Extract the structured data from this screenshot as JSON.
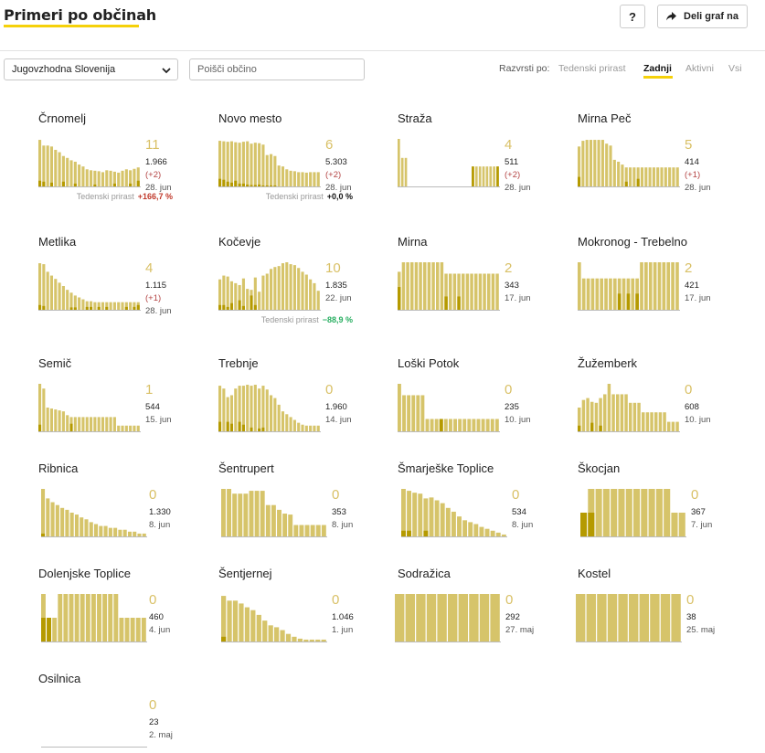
{
  "header": {
    "title": "Primeri po občinah",
    "help_label": "?",
    "share_label": "Deli graf na"
  },
  "filters": {
    "region_value": "Jugovzhodna Slovenija",
    "search_placeholder": "Poišči občino"
  },
  "sort": {
    "label": "Razvrsti po:",
    "options": [
      "Tedenski prirast",
      "Zadnji",
      "Aktivni",
      "Vsi"
    ],
    "active": "Zadnji"
  },
  "colors": {
    "bar": "#d6c46a",
    "bar_dark": "#b59a00",
    "big_number": "#d9c066",
    "delta": "#b44444",
    "growth_up": "#c0392b",
    "growth_down": "#27ae60",
    "accent": "#f5d10a"
  },
  "municipalities": [
    {
      "name": "Črnomelj",
      "latest": "11",
      "total": "1.966",
      "delta": "(+2)",
      "date": "28. jun",
      "growth_label": "Tedenski prirast",
      "growth_value": "+166,7 %",
      "growth_dir": "up",
      "bars": [
        0.98,
        0.86,
        0.86,
        0.84,
        0.77,
        0.72,
        0.64,
        0.6,
        0.55,
        0.52,
        0.46,
        0.42,
        0.36,
        0.34,
        0.33,
        0.32,
        0.3,
        0.34,
        0.33,
        0.31,
        0.29,
        0.33,
        0.36,
        0.34,
        0.37,
        0.4
      ],
      "dark": [
        0.12,
        0.1,
        0,
        0.08,
        0,
        0,
        0.1,
        0,
        0,
        0.06,
        0,
        0,
        0,
        0,
        0.04,
        0,
        0,
        0,
        0,
        0.06,
        0,
        0,
        0,
        0.06,
        0,
        0.12
      ]
    },
    {
      "name": "Novo mesto",
      "latest": "6",
      "total": "5.303",
      "delta": "(+2)",
      "date": "28. jun",
      "growth_label": "Tedenski prirast",
      "growth_value": "+0,0 %",
      "growth_dir": "flat",
      "bars": [
        0.96,
        0.95,
        0.94,
        0.95,
        0.93,
        0.92,
        0.94,
        0.95,
        0.9,
        0.92,
        0.91,
        0.88,
        0.66,
        0.68,
        0.64,
        0.44,
        0.42,
        0.36,
        0.33,
        0.32,
        0.3,
        0.3,
        0.29,
        0.3,
        0.3,
        0.3
      ],
      "dark": [
        0.16,
        0.14,
        0.1,
        0.08,
        0.12,
        0.06,
        0.06,
        0.04,
        0.03,
        0.03,
        0.04,
        0.02,
        0.02,
        0.02,
        0.02,
        0,
        0,
        0,
        0,
        0,
        0,
        0,
        0,
        0,
        0,
        0
      ]
    },
    {
      "name": "Straža",
      "latest": "4",
      "total": "511",
      "delta": "(+2)",
      "date": "28. jun",
      "growth_label": "",
      "growth_value": "",
      "growth_dir": "",
      "bars": [
        1.0,
        0.6,
        0.6,
        0,
        0,
        0,
        0,
        0,
        0,
        0,
        0,
        0,
        0,
        0,
        0,
        0,
        0,
        0,
        0,
        0,
        0,
        0.42,
        0.42,
        0.42,
        0.42,
        0.42,
        0.42,
        0.42,
        0.42
      ],
      "dark": [
        0,
        0,
        0,
        0,
        0,
        0,
        0,
        0,
        0,
        0,
        0,
        0,
        0,
        0,
        0,
        0,
        0,
        0,
        0,
        0,
        0,
        0.42,
        0,
        0,
        0,
        0,
        0,
        0,
        0.42
      ]
    },
    {
      "name": "Mirna Peč",
      "latest": "5",
      "total": "414",
      "delta": "(+1)",
      "date": "28. jun",
      "growth_label": "",
      "growth_value": "",
      "growth_dir": "",
      "bars": [
        0.84,
        0.96,
        0.98,
        0.98,
        0.98,
        0.98,
        0.98,
        0.9,
        0.86,
        0.56,
        0.52,
        0.46,
        0.4,
        0.4,
        0.4,
        0.4,
        0.4,
        0.4,
        0.4,
        0.4,
        0.4,
        0.4,
        0.4,
        0.4,
        0.4,
        0.4
      ],
      "dark": [
        0.2,
        0,
        0,
        0,
        0,
        0,
        0,
        0,
        0,
        0,
        0,
        0,
        0.1,
        0,
        0,
        0.16,
        0,
        0,
        0,
        0,
        0,
        0,
        0,
        0,
        0,
        0
      ]
    },
    {
      "name": "Metlika",
      "latest": "4",
      "total": "1.115",
      "delta": "(+1)",
      "date": "28. jun",
      "growth_label": "",
      "growth_value": "",
      "growth_dir": "",
      "bars": [
        0.98,
        0.96,
        0.8,
        0.72,
        0.65,
        0.57,
        0.5,
        0.42,
        0.36,
        0.3,
        0.26,
        0.22,
        0.18,
        0.18,
        0.16,
        0.16,
        0.16,
        0.16,
        0.16,
        0.16,
        0.16,
        0.16,
        0.16,
        0.16,
        0.16,
        0.16
      ],
      "dark": [
        0.1,
        0.08,
        0,
        0,
        0,
        0,
        0,
        0,
        0.05,
        0.05,
        0,
        0,
        0.06,
        0.06,
        0,
        0.06,
        0,
        0.06,
        0,
        0,
        0,
        0,
        0.06,
        0,
        0.06,
        0.1
      ]
    },
    {
      "name": "Kočevje",
      "latest": "10",
      "total": "1.835",
      "delta": "",
      "date": "22. jun",
      "growth_label": "Tedenski prirast",
      "growth_value": "−88,9 %",
      "growth_dir": "down",
      "bars": [
        0.64,
        0.72,
        0.7,
        0.6,
        0.56,
        0.52,
        0.66,
        0.44,
        0.42,
        0.68,
        0.38,
        0.72,
        0.76,
        0.86,
        0.9,
        0.92,
        0.98,
        1.0,
        0.96,
        0.94,
        0.88,
        0.8,
        0.74,
        0.64,
        0.56,
        0.4
      ],
      "dark": [
        0.1,
        0.1,
        0.06,
        0.14,
        0,
        0.2,
        0.08,
        0,
        0.3,
        0.1,
        0,
        0,
        0,
        0,
        0,
        0,
        0,
        0,
        0,
        0,
        0,
        0,
        0,
        0,
        0,
        0
      ]
    },
    {
      "name": "Mirna",
      "latest": "2",
      "total": "343",
      "delta": "",
      "date": "17. jun",
      "growth_label": "",
      "growth_value": "",
      "growth_dir": "",
      "bars": [
        0.8,
        1.0,
        1.0,
        1.0,
        1.0,
        1.0,
        1.0,
        1.0,
        1.0,
        1.0,
        1.0,
        0.76,
        0.76,
        0.76,
        0.76,
        0.76,
        0.76,
        0.76,
        0.76,
        0.76,
        0.76,
        0.76,
        0.76,
        0.76
      ],
      "dark": [
        0.48,
        0,
        0,
        0,
        0,
        0,
        0,
        0,
        0,
        0,
        0,
        0.28,
        0,
        0,
        0.28,
        0,
        0,
        0,
        0,
        0,
        0,
        0,
        0,
        0
      ]
    },
    {
      "name": "Mokronog - Trebelno",
      "latest": "2",
      "total": "421",
      "delta": "",
      "date": "17. jun",
      "growth_label": "",
      "growth_value": "",
      "growth_dir": "",
      "bars": [
        1.0,
        0.66,
        0.66,
        0.66,
        0.66,
        0.66,
        0.66,
        0.66,
        0.66,
        0.66,
        0.66,
        0.66,
        0.66,
        0.66,
        1.0,
        1.0,
        1.0,
        1.0,
        1.0,
        1.0,
        1.0,
        1.0,
        1.0
      ],
      "dark": [
        0,
        0,
        0,
        0,
        0,
        0,
        0,
        0,
        0,
        0.34,
        0,
        0.34,
        0,
        0.34,
        0,
        0,
        0,
        0,
        0,
        0,
        0,
        0,
        0
      ]
    },
    {
      "name": "Semič",
      "latest": "1",
      "total": "544",
      "delta": "",
      "date": "15. jun",
      "growth_label": "",
      "growth_value": "",
      "growth_dir": "",
      "bars": [
        1.0,
        0.9,
        0.5,
        0.48,
        0.46,
        0.44,
        0.42,
        0.34,
        0.3,
        0.3,
        0.3,
        0.3,
        0.3,
        0.3,
        0.3,
        0.3,
        0.3,
        0.3,
        0.3,
        0.3,
        0.12,
        0.12,
        0.12,
        0.12,
        0.12,
        0.12
      ],
      "dark": [
        0.14,
        0,
        0,
        0,
        0,
        0,
        0,
        0,
        0.16,
        0,
        0,
        0,
        0,
        0,
        0,
        0,
        0,
        0,
        0,
        0,
        0,
        0,
        0,
        0,
        0,
        0
      ]
    },
    {
      "name": "Trebnje",
      "latest": "0",
      "total": "1.960",
      "delta": "",
      "date": "14. jun",
      "growth_label": "",
      "growth_value": "",
      "growth_dir": "",
      "bars": [
        0.96,
        0.9,
        0.72,
        0.76,
        0.9,
        0.96,
        0.96,
        0.98,
        0.96,
        0.98,
        0.9,
        0.96,
        0.88,
        0.76,
        0.7,
        0.56,
        0.42,
        0.36,
        0.3,
        0.24,
        0.18,
        0.14,
        0.12,
        0.12,
        0.12,
        0.12
      ],
      "dark": [
        0.2,
        0,
        0.2,
        0.16,
        0,
        0.2,
        0.14,
        0,
        0.08,
        0,
        0.06,
        0.08,
        0,
        0,
        0,
        0,
        0,
        0,
        0,
        0,
        0,
        0,
        0,
        0,
        0,
        0
      ]
    },
    {
      "name": "Loški Potok",
      "latest": "0",
      "total": "235",
      "delta": "",
      "date": "10. jun",
      "growth_label": "",
      "growth_value": "",
      "growth_dir": "",
      "bars": [
        1.0,
        0.76,
        0.76,
        0.76,
        0.76,
        0.76,
        0.26,
        0.26,
        0.26,
        0.26,
        0.26,
        0.26,
        0.26,
        0.26,
        0.26,
        0.26,
        0.26,
        0.26,
        0.26,
        0.26,
        0.26,
        0.26
      ],
      "dark": [
        0,
        0,
        0,
        0,
        0,
        0,
        0,
        0,
        0,
        0.26,
        0,
        0,
        0,
        0,
        0,
        0,
        0,
        0,
        0,
        0,
        0,
        0
      ]
    },
    {
      "name": "Žužemberk",
      "latest": "0",
      "total": "608",
      "delta": "",
      "date": "10. jun",
      "growth_label": "",
      "growth_value": "",
      "growth_dir": "",
      "bars": [
        0.5,
        0.66,
        0.7,
        0.62,
        0.6,
        0.7,
        0.78,
        1.0,
        0.78,
        0.78,
        0.78,
        0.78,
        0.6,
        0.6,
        0.6,
        0.4,
        0.4,
        0.4,
        0.4,
        0.4,
        0.4,
        0.2,
        0.2,
        0.2
      ],
      "dark": [
        0.12,
        0,
        0,
        0.18,
        0,
        0.12,
        0,
        0,
        0,
        0,
        0,
        0,
        0,
        0,
        0,
        0,
        0,
        0,
        0,
        0,
        0,
        0,
        0,
        0
      ]
    },
    {
      "name": "Ribnica",
      "latest": "0",
      "total": "1.330",
      "delta": "",
      "date": "8. jun",
      "growth_label": "",
      "growth_value": "",
      "growth_dir": "",
      "bars": [
        1.0,
        0.8,
        0.72,
        0.66,
        0.6,
        0.56,
        0.5,
        0.46,
        0.4,
        0.36,
        0.3,
        0.26,
        0.22,
        0.22,
        0.18,
        0.18,
        0.14,
        0.14,
        0.1,
        0.1,
        0.06,
        0.06
      ],
      "dark": [
        0.06,
        0,
        0,
        0,
        0,
        0,
        0,
        0,
        0,
        0,
        0,
        0,
        0,
        0,
        0,
        0,
        0,
        0,
        0,
        0,
        0,
        0
      ]
    },
    {
      "name": "Šentrupert",
      "latest": "0",
      "total": "353",
      "delta": "",
      "date": "8. jun",
      "growth_label": "",
      "growth_value": "",
      "growth_dir": "",
      "bars": [
        1.0,
        1.0,
        0.9,
        0.9,
        0.9,
        0.96,
        0.96,
        0.96,
        0.66,
        0.66,
        0.56,
        0.48,
        0.46,
        0.24,
        0.24,
        0.24,
        0.24,
        0.24,
        0.24
      ],
      "dark": [
        0,
        0,
        0,
        0,
        0,
        0,
        0,
        0,
        0,
        0,
        0,
        0,
        0,
        0,
        0,
        0,
        0,
        0,
        0
      ]
    },
    {
      "name": "Šmarješke Toplice",
      "latest": "0",
      "total": "534",
      "delta": "",
      "date": "8. jun",
      "growth_label": "",
      "growth_value": "",
      "growth_dir": "",
      "bars": [
        1.0,
        0.96,
        0.92,
        0.9,
        0.8,
        0.82,
        0.76,
        0.7,
        0.6,
        0.52,
        0.42,
        0.34,
        0.3,
        0.26,
        0.2,
        0.16,
        0.12,
        0.08,
        0.04
      ],
      "dark": [
        0.12,
        0.12,
        0,
        0,
        0.12,
        0,
        0,
        0,
        0,
        0,
        0,
        0,
        0,
        0,
        0,
        0,
        0,
        0,
        0
      ]
    },
    {
      "name": "Škocjan",
      "latest": "0",
      "total": "367",
      "delta": "",
      "date": "7. jun",
      "growth_label": "",
      "growth_value": "",
      "growth_dir": "",
      "bars": [
        0.5,
        1.0,
        1.0,
        1.0,
        1.0,
        1.0,
        1.0,
        1.0,
        1.0,
        1.0,
        1.0,
        1.0,
        0.5,
        0.5
      ],
      "dark": [
        0.5,
        0.5,
        0,
        0,
        0,
        0,
        0,
        0,
        0,
        0,
        0,
        0,
        0,
        0
      ]
    },
    {
      "name": "Dolenjske Toplice",
      "latest": "0",
      "total": "460",
      "delta": "",
      "date": "4. jun",
      "growth_label": "",
      "growth_value": "",
      "growth_dir": "",
      "bars": [
        1.0,
        0.5,
        0.5,
        1.0,
        1.0,
        1.0,
        1.0,
        1.0,
        1.0,
        1.0,
        1.0,
        1.0,
        1.0,
        1.0,
        0.5,
        0.5,
        0.5,
        0.5,
        0.5
      ],
      "dark": [
        0.5,
        0.5,
        0,
        0,
        0,
        0,
        0,
        0,
        0,
        0,
        0,
        0,
        0,
        0,
        0,
        0,
        0,
        0,
        0
      ]
    },
    {
      "name": "Šentjernej",
      "latest": "0",
      "total": "1.046",
      "delta": "",
      "date": "1. jun",
      "growth_label": "",
      "growth_value": "",
      "growth_dir": "",
      "bars": [
        0.96,
        0.86,
        0.86,
        0.8,
        0.72,
        0.66,
        0.56,
        0.44,
        0.34,
        0.3,
        0.24,
        0.16,
        0.1,
        0.06,
        0.04,
        0.04,
        0.04,
        0.04
      ],
      "dark": [
        0.1,
        0,
        0,
        0,
        0,
        0,
        0,
        0,
        0,
        0,
        0,
        0,
        0,
        0,
        0,
        0,
        0,
        0
      ]
    },
    {
      "name": "Sodražica",
      "latest": "0",
      "total": "292",
      "delta": "",
      "date": "27. maj",
      "growth_label": "",
      "growth_value": "",
      "growth_dir": "",
      "bars": [
        1.0,
        1.0,
        1.0,
        1.0,
        1.0,
        1.0,
        1.0,
        1.0,
        1.0,
        1.0
      ],
      "dark": [
        0,
        0,
        0,
        0,
        0,
        0,
        0,
        0,
        0,
        0
      ]
    },
    {
      "name": "Kostel",
      "latest": "0",
      "total": "38",
      "delta": "",
      "date": "25. maj",
      "growth_label": "",
      "growth_value": "",
      "growth_dir": "",
      "bars": [
        1.0,
        1.0,
        1.0,
        1.0,
        1.0,
        1.0,
        1.0,
        1.0,
        1.0,
        1.0
      ],
      "dark": [
        0,
        0,
        0,
        0,
        0,
        0,
        0,
        0,
        0,
        0
      ]
    },
    {
      "name": "Osilnica",
      "latest": "0",
      "total": "23",
      "delta": "",
      "date": "2. maj",
      "growth_label": "",
      "growth_value": "",
      "growth_dir": "",
      "bars": [],
      "dark": []
    }
  ]
}
